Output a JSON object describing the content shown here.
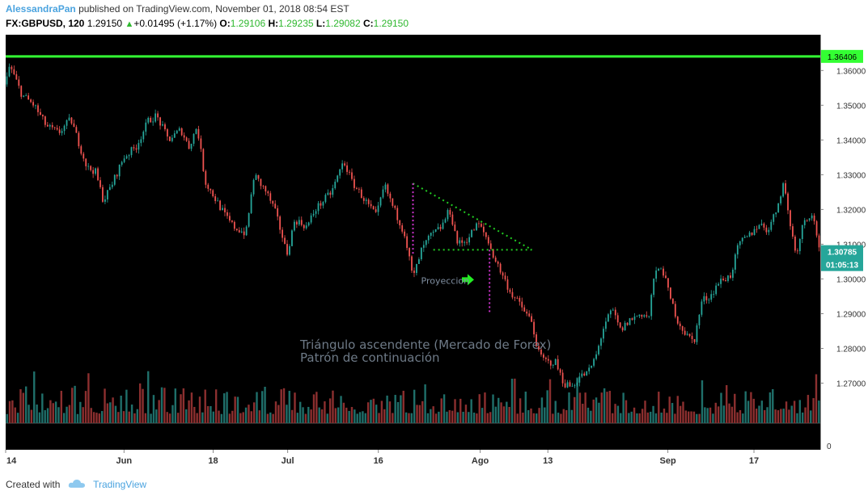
{
  "header": {
    "author": "AlessandraPan",
    "published": "published on TradingView.com, November 01, 2018 08:54 EST",
    "symbol": "FX:GBPUSD, 120",
    "last": "1.29150",
    "change": "+0.01495 (+1.17%)",
    "o_label": "O:",
    "o": "1.29106",
    "h_label": "H:",
    "h": "1.29235",
    "l_label": "L:",
    "l": "1.29082",
    "c_label": "C:",
    "c": "1.29150"
  },
  "footer": {
    "created": "Created with",
    "brand": "TradingView"
  },
  "colors": {
    "up": "#26a69a",
    "down": "#ef5350",
    "resistance": "#33ff33",
    "triangle": "#22cc22",
    "projection": "#cc33cc",
    "arrow": "#22ee22",
    "price_tag": "#26a69a",
    "resistance_tag": "#33ff33"
  },
  "chart_data": {
    "type": "candlestick",
    "symbol": "FX:GBPUSD",
    "interval": "120",
    "price_axis": {
      "ticks": [
        "1.36000",
        "1.35000",
        "1.34000",
        "1.33000",
        "1.32000",
        "1.31000",
        "1.30000",
        "1.29000",
        "1.28000",
        "1.27000"
      ],
      "tick_values": [
        1.36,
        1.35,
        1.34,
        1.33,
        1.32,
        1.31,
        1.3,
        1.29,
        1.28,
        1.27
      ],
      "top_label": "0",
      "volume_label": "0",
      "range": [
        1.2585,
        1.3703
      ]
    },
    "time_axis": {
      "labels": [
        "14",
        "Jun",
        "18",
        "Jul",
        "16",
        "Ago",
        "13",
        "Sep",
        "17"
      ],
      "positions": [
        0,
        0.1453,
        0.2547,
        0.3462,
        0.4575,
        0.5825,
        0.6656,
        0.8129,
        0.9186
      ]
    },
    "price_path": [
      [
        0.0,
        1.356
      ],
      [
        0.005,
        1.3615
      ],
      [
        0.02,
        1.353
      ],
      [
        0.035,
        1.35
      ],
      [
        0.05,
        1.344
      ],
      [
        0.065,
        1.342
      ],
      [
        0.08,
        1.346
      ],
      [
        0.09,
        1.339
      ],
      [
        0.1,
        1.332
      ],
      [
        0.11,
        1.331
      ],
      [
        0.12,
        1.3225
      ],
      [
        0.13,
        1.327
      ],
      [
        0.145,
        1.335
      ],
      [
        0.16,
        1.338
      ],
      [
        0.175,
        1.3455
      ],
      [
        0.185,
        1.347
      ],
      [
        0.2,
        1.34
      ],
      [
        0.215,
        1.343
      ],
      [
        0.225,
        1.338
      ],
      [
        0.235,
        1.344
      ],
      [
        0.245,
        1.328
      ],
      [
        0.26,
        1.322
      ],
      [
        0.27,
        1.318
      ],
      [
        0.28,
        1.315
      ],
      [
        0.295,
        1.313
      ],
      [
        0.305,
        1.33
      ],
      [
        0.32,
        1.325
      ],
      [
        0.33,
        1.32
      ],
      [
        0.34,
        1.312
      ],
      [
        0.345,
        1.307
      ],
      [
        0.355,
        1.317
      ],
      [
        0.37,
        1.315
      ],
      [
        0.38,
        1.32
      ],
      [
        0.4,
        1.325
      ],
      [
        0.415,
        1.334
      ],
      [
        0.425,
        1.328
      ],
      [
        0.44,
        1.323
      ],
      [
        0.455,
        1.318
      ],
      [
        0.465,
        1.327
      ],
      [
        0.475,
        1.321
      ],
      [
        0.49,
        1.313
      ],
      [
        0.5,
        1.3
      ],
      [
        0.51,
        1.308
      ],
      [
        0.52,
        1.312
      ],
      [
        0.535,
        1.315
      ],
      [
        0.545,
        1.32
      ],
      [
        0.555,
        1.31
      ],
      [
        0.565,
        1.311
      ],
      [
        0.58,
        1.316
      ],
      [
        0.59,
        1.312
      ],
      [
        0.6,
        1.306
      ],
      [
        0.61,
        1.301
      ],
      [
        0.62,
        1.296
      ],
      [
        0.63,
        1.293
      ],
      [
        0.645,
        1.288
      ],
      [
        0.655,
        1.278
      ],
      [
        0.665,
        1.276
      ],
      [
        0.675,
        1.276
      ],
      [
        0.685,
        1.27
      ],
      [
        0.695,
        1.269
      ],
      [
        0.705,
        1.272
      ],
      [
        0.715,
        1.273
      ],
      [
        0.725,
        1.278
      ],
      [
        0.735,
        1.287
      ],
      [
        0.745,
        1.291
      ],
      [
        0.755,
        1.285
      ],
      [
        0.765,
        1.288
      ],
      [
        0.78,
        1.29
      ],
      [
        0.79,
        1.289
      ],
      [
        0.795,
        1.3
      ],
      [
        0.805,
        1.304
      ],
      [
        0.815,
        1.295
      ],
      [
        0.825,
        1.288
      ],
      [
        0.835,
        1.284
      ],
      [
        0.845,
        1.282
      ],
      [
        0.855,
        1.294
      ],
      [
        0.865,
        1.295
      ],
      [
        0.875,
        1.299
      ],
      [
        0.89,
        1.301
      ],
      [
        0.9,
        1.31
      ],
      [
        0.915,
        1.313
      ],
      [
        0.925,
        1.316
      ],
      [
        0.935,
        1.314
      ],
      [
        0.945,
        1.319
      ],
      [
        0.955,
        1.328
      ],
      [
        0.96,
        1.32
      ],
      [
        0.97,
        1.307
      ],
      [
        0.98,
        1.317
      ],
      [
        0.99,
        1.319
      ],
      [
        1.0,
        1.308
      ]
    ],
    "resistance_line": {
      "price": 1.36406,
      "label": "1.36406"
    },
    "last_price": {
      "price": 1.30785,
      "label": "1.30785",
      "countdown": "01:05:13"
    },
    "triangle": {
      "top": [
        0.5,
        1.3275
      ],
      "tip": [
        0.646,
        1.3084
      ],
      "bottom_left": [
        0.525,
        1.3084
      ]
    },
    "projection_lines": [
      {
        "x": 0.5,
        "from": 1.3275,
        "to": 1.307
      },
      {
        "x": 0.594,
        "from": 1.3084,
        "to": 1.29
      }
    ],
    "projection_arrow": {
      "x": 0.567,
      "price": 1.2998
    },
    "annotations": {
      "projection_label": "Proyeccion",
      "title_line1": "Triángulo ascendente (Mercado de Forex)",
      "title_line2": "Patrón de continuación"
    },
    "volume": {
      "bars": 300,
      "max_relative": 1.0
    }
  }
}
